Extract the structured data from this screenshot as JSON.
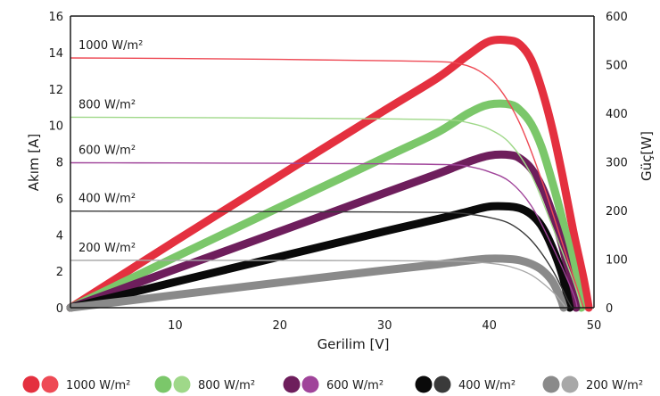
{
  "chart_data": {
    "type": "line",
    "xlabel": "Gerilim [V]",
    "ylabel_left": "Akım [A]",
    "ylabel_right": "Güç[W]",
    "xlim": [
      0,
      50
    ],
    "ylim_left": [
      0,
      16
    ],
    "ylim_right": [
      0,
      600
    ],
    "x_ticks": [
      10,
      20,
      30,
      40,
      50
    ],
    "y_left_ticks": [
      0,
      2,
      4,
      6,
      8,
      10,
      12,
      14,
      16
    ],
    "y_right_ticks": [
      0,
      100,
      200,
      300,
      400,
      500,
      600
    ],
    "series": [
      {
        "name": "1000 W/m²",
        "current_color": "#ee4a55",
        "power_color": "#e4303f",
        "current": [
          [
            0,
            13.7
          ],
          [
            10,
            13.67
          ],
          [
            20,
            13.62
          ],
          [
            30,
            13.55
          ],
          [
            35,
            13.5
          ],
          [
            37,
            13.4
          ],
          [
            39,
            13.0
          ],
          [
            41,
            12.0
          ],
          [
            43,
            10.0
          ],
          [
            45,
            7.0
          ],
          [
            47,
            3.5
          ],
          [
            49,
            0
          ]
        ],
        "power": [
          [
            0,
            0
          ],
          [
            10,
            137
          ],
          [
            20,
            272
          ],
          [
            30,
            406
          ],
          [
            35,
            472
          ],
          [
            38,
            520
          ],
          [
            40,
            548
          ],
          [
            42,
            550
          ],
          [
            43,
            540
          ],
          [
            44,
            510
          ],
          [
            45,
            450
          ],
          [
            46,
            370
          ],
          [
            47,
            270
          ],
          [
            48,
            160
          ],
          [
            49,
            60
          ],
          [
            49.5,
            0
          ]
        ]
      },
      {
        "name": "800 W/m²",
        "current_color": "#9fd889",
        "power_color": "#7bc76a",
        "current": [
          [
            0,
            10.45
          ],
          [
            10,
            10.43
          ],
          [
            20,
            10.4
          ],
          [
            30,
            10.36
          ],
          [
            36,
            10.3
          ],
          [
            38,
            10.15
          ],
          [
            40,
            9.8
          ],
          [
            42,
            9.0
          ],
          [
            44,
            7.3
          ],
          [
            46,
            4.5
          ],
          [
            48,
            1.5
          ],
          [
            48.8,
            0
          ]
        ],
        "power": [
          [
            0,
            0
          ],
          [
            10,
            104
          ],
          [
            20,
            207
          ],
          [
            30,
            309
          ],
          [
            35,
            360
          ],
          [
            38,
            400
          ],
          [
            40,
            418
          ],
          [
            42,
            418
          ],
          [
            43,
            405
          ],
          [
            44,
            378
          ],
          [
            45,
            330
          ],
          [
            46,
            260
          ],
          [
            47,
            180
          ],
          [
            48,
            90
          ],
          [
            48.8,
            0
          ]
        ]
      },
      {
        "name": "600 W/m²",
        "current_color": "#a0449a",
        "power_color": "#6e1e5c",
        "current": [
          [
            0,
            7.95
          ],
          [
            10,
            7.94
          ],
          [
            20,
            7.92
          ],
          [
            30,
            7.89
          ],
          [
            36,
            7.85
          ],
          [
            38,
            7.75
          ],
          [
            40,
            7.45
          ],
          [
            42,
            6.9
          ],
          [
            44,
            5.6
          ],
          [
            46,
            3.4
          ],
          [
            48,
            0.8
          ],
          [
            48.4,
            0
          ]
        ],
        "power": [
          [
            0,
            0
          ],
          [
            10,
            79
          ],
          [
            20,
            157
          ],
          [
            30,
            236
          ],
          [
            35,
            275
          ],
          [
            38,
            300
          ],
          [
            40,
            313
          ],
          [
            42,
            314
          ],
          [
            43,
            306
          ],
          [
            44,
            286
          ],
          [
            45,
            250
          ],
          [
            46,
            195
          ],
          [
            47,
            125
          ],
          [
            47.8,
            50
          ],
          [
            48.3,
            0
          ]
        ]
      },
      {
        "name": "400 W/m²",
        "current_color": "#3a3a3a",
        "power_color": "#0a0a0a",
        "current": [
          [
            0,
            5.3
          ],
          [
            10,
            5.29
          ],
          [
            20,
            5.27
          ],
          [
            30,
            5.25
          ],
          [
            36,
            5.22
          ],
          [
            38,
            5.14
          ],
          [
            40,
            4.95
          ],
          [
            42,
            4.6
          ],
          [
            44,
            3.7
          ],
          [
            46,
            2.1
          ],
          [
            47.5,
            0.4
          ],
          [
            47.9,
            0
          ]
        ],
        "power": [
          [
            0,
            0
          ],
          [
            10,
            53
          ],
          [
            20,
            105
          ],
          [
            30,
            157
          ],
          [
            35,
            182
          ],
          [
            38,
            198
          ],
          [
            40,
            208
          ],
          [
            42,
            208
          ],
          [
            43,
            204
          ],
          [
            44,
            192
          ],
          [
            45,
            168
          ],
          [
            46,
            125
          ],
          [
            47,
            65
          ],
          [
            47.7,
            0
          ]
        ]
      },
      {
        "name": "200 W/m²",
        "current_color": "#a8a8a8",
        "power_color": "#8a8a8a",
        "current": [
          [
            0,
            2.6
          ],
          [
            10,
            2.6
          ],
          [
            20,
            2.59
          ],
          [
            30,
            2.58
          ],
          [
            36,
            2.56
          ],
          [
            38,
            2.52
          ],
          [
            40,
            2.44
          ],
          [
            42,
            2.25
          ],
          [
            44,
            1.8
          ],
          [
            46,
            0.9
          ],
          [
            47,
            0.25
          ],
          [
            47.3,
            0
          ]
        ],
        "power": [
          [
            0,
            0
          ],
          [
            10,
            26
          ],
          [
            20,
            52
          ],
          [
            30,
            77
          ],
          [
            35,
            89
          ],
          [
            38,
            97
          ],
          [
            40,
            101
          ],
          [
            42,
            100
          ],
          [
            43,
            97
          ],
          [
            44,
            90
          ],
          [
            45,
            78
          ],
          [
            46,
            55
          ],
          [
            46.8,
            20
          ],
          [
            47.1,
            0
          ]
        ]
      }
    ],
    "legend": {
      "position": "bottom",
      "entries": [
        {
          "label": "1000 W/m²",
          "swatch_colors": [
            "#e4303f",
            "#ee4a55"
          ]
        },
        {
          "label": "800 W/m²",
          "swatch_colors": [
            "#7bc76a",
            "#9fd889"
          ]
        },
        {
          "label": "600 W/m²",
          "swatch_colors": [
            "#6e1e5c",
            "#a0449a"
          ]
        },
        {
          "label": "400 W/m²",
          "swatch_colors": [
            "#0a0a0a",
            "#3a3a3a"
          ]
        },
        {
          "label": "200 W/m²",
          "swatch_colors": [
            "#8a8a8a",
            "#a8a8a8"
          ]
        }
      ]
    },
    "grid": false
  }
}
